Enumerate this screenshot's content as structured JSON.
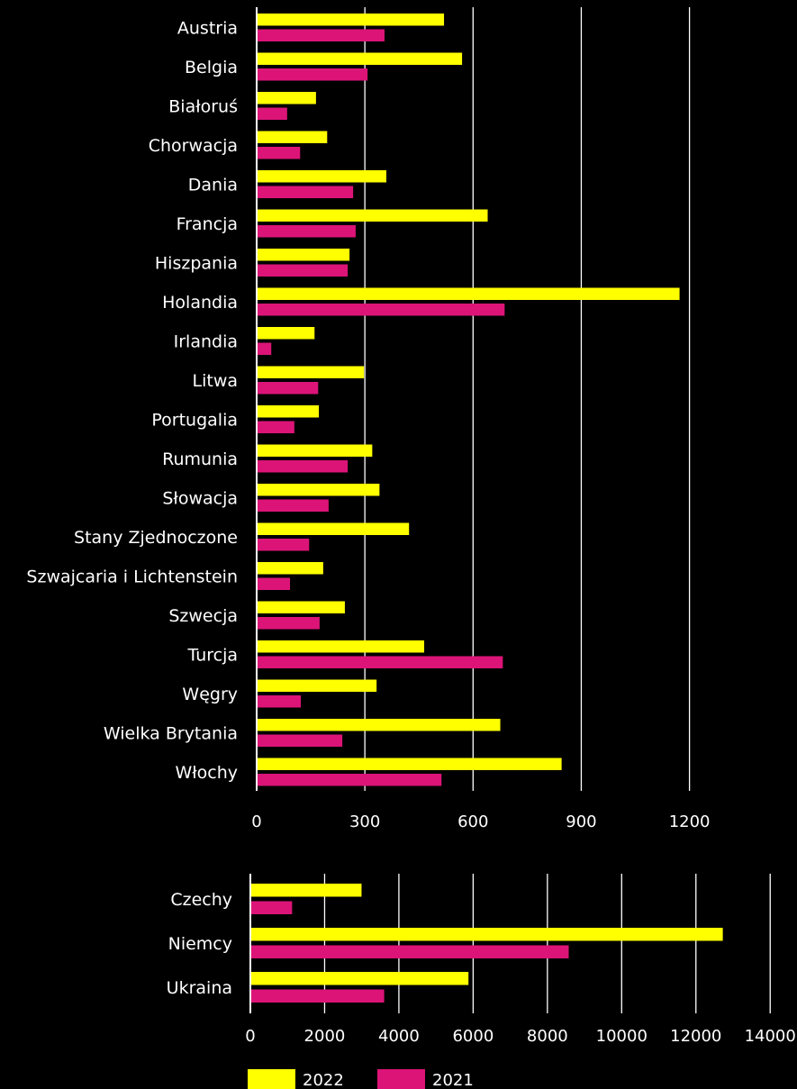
{
  "colors": {
    "background": "#000000",
    "series_2022": "#ffff00",
    "series_2021": "#dc1478",
    "text": "#ffffff",
    "grid": "#ffffff"
  },
  "chart_data": [
    {
      "type": "bar",
      "orientation": "horizontal",
      "categories": [
        "Austria",
        "Belgia",
        "Białoruś",
        "Chorwacja",
        "Dania",
        "Francja",
        "Hiszpania",
        "Holandia",
        "Irlandia",
        "Litwa",
        "Portugalia",
        "Rumunia",
        "Słowacja",
        "Stany Zjednoczone",
        "Szwajcaria i Lichtenstein",
        "Szwecja",
        "Turcja",
        "Węgry",
        "Wielka Brytania",
        "Włochy"
      ],
      "series": [
        {
          "name": "2022",
          "color": "#ffff00",
          "values": [
            517,
            567,
            162,
            193,
            357,
            638,
            255,
            1170,
            158,
            295,
            170,
            318,
            338,
            420,
            182,
            242,
            462,
            330,
            673,
            843
          ]
        },
        {
          "name": "2021",
          "color": "#dc1478",
          "values": [
            352,
            305,
            82,
            118,
            265,
            272,
            250,
            685,
            38,
            168,
            102,
            250,
            197,
            143,
            90,
            172,
            680,
            120,
            235,
            510
          ]
        }
      ],
      "xticks": [
        "0",
        "300",
        "600",
        "900",
        "1200"
      ],
      "xlim": [
        0,
        1500
      ],
      "grid": true
    },
    {
      "type": "bar",
      "orientation": "horizontal",
      "categories": [
        "Czechy",
        "Niemcy",
        "Ukraina"
      ],
      "series": [
        {
          "name": "2022",
          "color": "#ffff00",
          "values": [
            2970,
            12700,
            5850
          ]
        },
        {
          "name": "2021",
          "color": "#dc1478",
          "values": [
            1100,
            8550,
            3580
          ]
        }
      ],
      "xticks": [
        "0",
        "2000",
        "4000",
        "6000",
        "8000",
        "10000",
        "12000",
        "14000"
      ],
      "xlim": [
        0,
        14000
      ],
      "grid": true
    }
  ],
  "legend": {
    "position": "bottom-center",
    "items": [
      {
        "label": "2022",
        "color": "#ffff00"
      },
      {
        "label": "2021",
        "color": "#dc1478"
      }
    ]
  }
}
